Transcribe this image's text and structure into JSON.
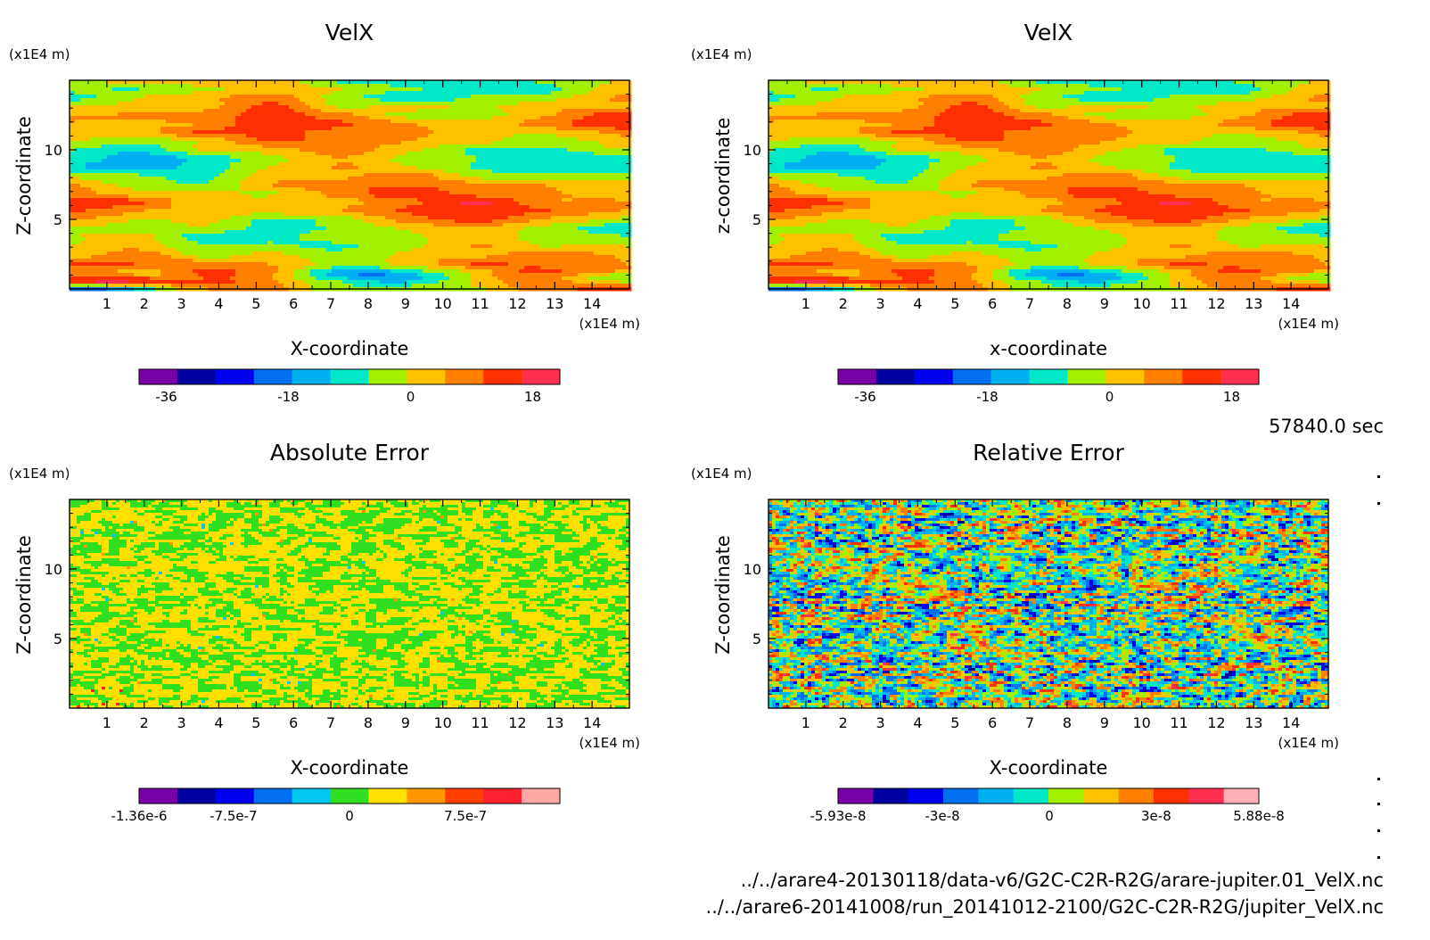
{
  "figure": {
    "timestamp": "57840.0 sec",
    "files": [
      "../../arare4-20130118/data-v6/G2C-C2R-R2G/arare-jupiter.01_VelX.nc",
      "../../arare6-20141008/run_20141012-2100/G2C-C2R-R2G/jupiter_VelX.nc"
    ]
  },
  "chart_data": [
    {
      "type": "heatmap",
      "title": "VelX",
      "xlabel": "X-coordinate",
      "ylabel": "Z-coordinate",
      "x_unit": "(x1E4 m)",
      "y_unit": "(x1E4 m)",
      "xlim": [
        0,
        15
      ],
      "ylim": [
        0,
        15
      ],
      "x_ticks": [
        "1",
        "2",
        "3",
        "4",
        "5",
        "6",
        "7",
        "8",
        "9",
        "10",
        "11",
        "12",
        "13",
        "14"
      ],
      "y_ticks": [
        "5",
        "10"
      ],
      "colorbar": {
        "colors": [
          "#7700aa",
          "#0000a0",
          "#0000ee",
          "#0070f0",
          "#00b0f0",
          "#00e8c8",
          "#a0f000",
          "#ffc000",
          "#ff8000",
          "#ff3000",
          "#ff3050"
        ],
        "tick_labels": [
          "-36",
          "-18",
          "0",
          "18"
        ],
        "tick_values": [
          -36,
          -18,
          0,
          18
        ],
        "range": [
          -40,
          22
        ]
      },
      "field": "smooth"
    },
    {
      "type": "heatmap",
      "title": "VelX",
      "xlabel": "x-coordinate",
      "ylabel": "z-coordinate",
      "x_unit": "(x1E4 m)",
      "y_unit": "(x1E4 m)",
      "xlim": [
        0,
        15
      ],
      "ylim": [
        0,
        15
      ],
      "x_ticks": [
        "1",
        "2",
        "3",
        "4",
        "5",
        "6",
        "7",
        "8",
        "9",
        "10",
        "11",
        "12",
        "13",
        "14"
      ],
      "y_ticks": [
        "5",
        "10"
      ],
      "colorbar": {
        "colors": [
          "#7700aa",
          "#0000a0",
          "#0000ee",
          "#0070f0",
          "#00b0f0",
          "#00e8c8",
          "#a0f000",
          "#ffc000",
          "#ff8000",
          "#ff3000",
          "#ff3050"
        ],
        "tick_labels": [
          "-36",
          "-18",
          "0",
          "18"
        ],
        "tick_values": [
          -36,
          -18,
          0,
          18
        ],
        "range": [
          -40,
          22
        ]
      },
      "field": "smooth"
    },
    {
      "type": "heatmap",
      "title": "Absolute Error",
      "xlabel": "X-coordinate",
      "ylabel": "Z-coordinate",
      "x_unit": "(x1E4 m)",
      "y_unit": "(x1E4 m)",
      "xlim": [
        0,
        15
      ],
      "ylim": [
        0,
        15
      ],
      "x_ticks": [
        "1",
        "2",
        "3",
        "4",
        "5",
        "6",
        "7",
        "8",
        "9",
        "10",
        "11",
        "12",
        "13",
        "14"
      ],
      "y_ticks": [
        "5",
        "10"
      ],
      "colorbar": {
        "colors": [
          "#7700aa",
          "#0000a0",
          "#0000ee",
          "#0070f0",
          "#00c8f0",
          "#30e020",
          "#ffe000",
          "#ff9800",
          "#ff4000",
          "#ff2030",
          "#ffa8a8"
        ],
        "tick_labels": [
          "-1.36e-6",
          "-7.5e-7",
          "0",
          "7.5e-7"
        ],
        "tick_values": [
          -1.36e-06,
          -7.5e-07,
          0,
          7.5e-07
        ],
        "range": [
          -1.36e-06,
          1.36e-06
        ]
      },
      "field": "noise-narrow"
    },
    {
      "type": "heatmap",
      "title": "Relative Error",
      "xlabel": "X-coordinate",
      "ylabel": "Z-coordinate",
      "x_unit": "(x1E4 m)",
      "y_unit": "(x1E4 m)",
      "xlim": [
        0,
        15
      ],
      "ylim": [
        0,
        15
      ],
      "x_ticks": [
        "1",
        "2",
        "3",
        "4",
        "5",
        "6",
        "7",
        "8",
        "9",
        "10",
        "11",
        "12",
        "13",
        "14"
      ],
      "y_ticks": [
        "5",
        "10"
      ],
      "colorbar": {
        "colors": [
          "#7700aa",
          "#0000a0",
          "#0000ee",
          "#0070f0",
          "#00b0f0",
          "#00e8c8",
          "#a0f000",
          "#ffc000",
          "#ff8000",
          "#ff3000",
          "#ff3050",
          "#ffb0b8"
        ],
        "tick_labels": [
          "-5.93e-8",
          "-3e-8",
          "0",
          "3e-8",
          "5.88e-8"
        ],
        "tick_values": [
          -5.93e-08,
          -3e-08,
          0,
          3e-08,
          5.88e-08
        ],
        "range": [
          -5.93e-08,
          5.88e-08
        ]
      },
      "field": "noise-wide"
    }
  ]
}
